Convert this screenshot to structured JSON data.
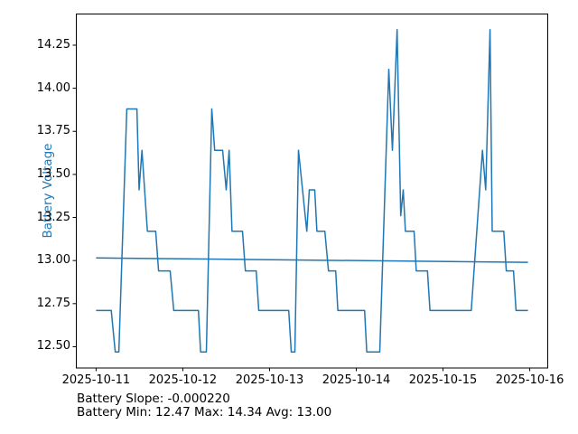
{
  "colors": {
    "line": "#1f77b4",
    "axis": "#000000",
    "ylabel": "#1f77b4",
    "background": "#ffffff"
  },
  "footer": {
    "line1": "Battery Slope: -0.000220",
    "line2": "Battery Min: 12.47 Max: 14.34 Avg: 13.00"
  },
  "chart_data": {
    "type": "line",
    "title": "",
    "xlabel": "",
    "ylabel": "Battery Voltage",
    "grid": false,
    "legend": "none",
    "x_unit": "hours since 2025-10-11 00:00",
    "xlim": [
      -5.6,
      125.1
    ],
    "ylim": [
      12.3765,
      14.4335
    ],
    "x_ticks": [
      {
        "hour": 0,
        "label": "2025-10-11"
      },
      {
        "hour": 24,
        "label": "2025-10-12"
      },
      {
        "hour": 48,
        "label": "2025-10-13"
      },
      {
        "hour": 72,
        "label": "2025-10-14"
      },
      {
        "hour": 96,
        "label": "2025-10-15"
      },
      {
        "hour": 120,
        "label": "2025-10-16"
      }
    ],
    "y_ticks": [
      {
        "value": 12.5,
        "label": "12.50"
      },
      {
        "value": 12.75,
        "label": "12.75"
      },
      {
        "value": 13.0,
        "label": "13.00"
      },
      {
        "value": 13.25,
        "label": "13.25"
      },
      {
        "value": 13.5,
        "label": "13.50"
      },
      {
        "value": 13.75,
        "label": "13.75"
      },
      {
        "value": 14.0,
        "label": "14.00"
      },
      {
        "value": 14.25,
        "label": "14.25"
      }
    ],
    "series": [
      {
        "name": "battery-voltage",
        "points": [
          [
            0.0,
            12.71
          ],
          [
            4.2,
            12.71
          ],
          [
            5.3,
            12.47
          ],
          [
            6.3,
            12.47
          ],
          [
            8.5,
            13.88
          ],
          [
            11.3,
            13.88
          ],
          [
            11.9,
            13.41
          ],
          [
            12.7,
            13.64
          ],
          [
            14.2,
            13.17
          ],
          [
            16.5,
            13.17
          ],
          [
            17.3,
            12.94
          ],
          [
            20.5,
            12.94
          ],
          [
            21.5,
            12.71
          ],
          [
            28.3,
            12.71
          ],
          [
            28.9,
            12.47
          ],
          [
            30.5,
            12.47
          ],
          [
            32.0,
            13.88
          ],
          [
            32.8,
            13.64
          ],
          [
            35.0,
            13.64
          ],
          [
            36.0,
            13.41
          ],
          [
            36.8,
            13.64
          ],
          [
            37.6,
            13.17
          ],
          [
            40.5,
            13.17
          ],
          [
            41.3,
            12.94
          ],
          [
            44.3,
            12.94
          ],
          [
            45.0,
            12.71
          ],
          [
            53.3,
            12.71
          ],
          [
            54.0,
            12.47
          ],
          [
            55.0,
            12.47
          ],
          [
            56.0,
            13.64
          ],
          [
            58.3,
            13.17
          ],
          [
            59.0,
            13.41
          ],
          [
            60.5,
            13.41
          ],
          [
            61.1,
            13.17
          ],
          [
            63.3,
            13.17
          ],
          [
            64.3,
            12.94
          ],
          [
            66.3,
            12.94
          ],
          [
            66.9,
            12.71
          ],
          [
            74.3,
            12.71
          ],
          [
            74.9,
            12.47
          ],
          [
            78.5,
            12.47
          ],
          [
            81.0,
            14.11
          ],
          [
            82.0,
            13.64
          ],
          [
            83.3,
            14.34
          ],
          [
            84.3,
            13.26
          ],
          [
            85.0,
            13.41
          ],
          [
            85.6,
            13.17
          ],
          [
            88.0,
            13.17
          ],
          [
            88.6,
            12.94
          ],
          [
            91.7,
            12.94
          ],
          [
            92.4,
            12.71
          ],
          [
            103.8,
            12.71
          ],
          [
            106.9,
            13.64
          ],
          [
            107.8,
            13.41
          ],
          [
            109.0,
            14.34
          ],
          [
            109.6,
            13.17
          ],
          [
            112.8,
            13.17
          ],
          [
            113.5,
            12.94
          ],
          [
            115.5,
            12.94
          ],
          [
            116.2,
            12.71
          ],
          [
            119.5,
            12.71
          ]
        ]
      },
      {
        "name": "trend-line",
        "points": [
          [
            0.0,
            13.015
          ],
          [
            119.5,
            12.99
          ]
        ]
      }
    ],
    "stats": {
      "slope": -0.00022,
      "min": 12.47,
      "max": 14.34,
      "avg": 13.0
    }
  }
}
